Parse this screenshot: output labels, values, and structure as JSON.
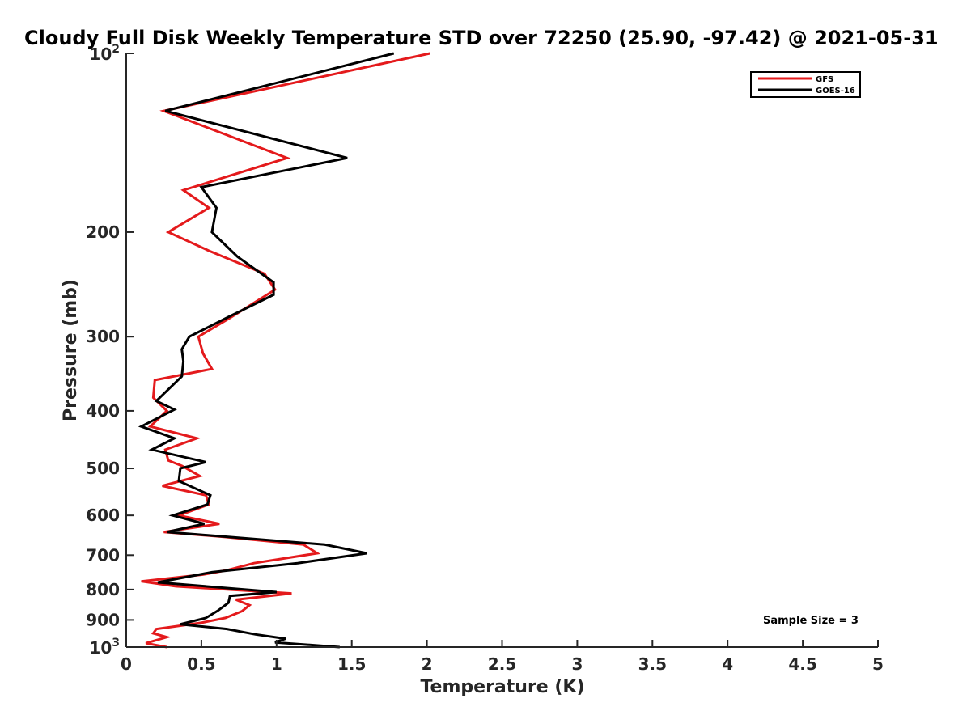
{
  "chart_data": {
    "type": "line",
    "title": "Cloudy Full Disk Weekly Temperature STD over 72250 (25.90, -97.42) @ 2021-05-31",
    "xlabel": "Temperature (K)",
    "ylabel": "Pressure (mb)",
    "xlim": [
      0,
      5
    ],
    "ylim": [
      100,
      1000
    ],
    "yscale": "log",
    "y_reversed": true,
    "x_ticks": [
      "0",
      "0.5",
      "1",
      "1.5",
      "2",
      "2.5",
      "3",
      "3.5",
      "4",
      "4.5",
      "5"
    ],
    "y_ticks": [
      {
        "value": 100,
        "base": "10",
        "exp": "2"
      },
      {
        "value": 200,
        "label": "200"
      },
      {
        "value": 300,
        "label": "300"
      },
      {
        "value": 400,
        "label": "400"
      },
      {
        "value": 500,
        "label": "500"
      },
      {
        "value": 600,
        "label": "600"
      },
      {
        "value": 700,
        "label": "700"
      },
      {
        "value": 800,
        "label": "800"
      },
      {
        "value": 900,
        "label": "900"
      },
      {
        "value": 1000,
        "base": "10",
        "exp": "3"
      }
    ],
    "legend_position": "top-right",
    "annotation": "Sample Size = 3",
    "series": [
      {
        "name": "GFS",
        "color": "#e41a1c",
        "points": [
          [
            2.02,
            100
          ],
          [
            0.25,
            125
          ],
          [
            1.07,
            150
          ],
          [
            0.38,
            170
          ],
          [
            0.55,
            182
          ],
          [
            0.28,
            200
          ],
          [
            0.55,
            215
          ],
          [
            0.92,
            235
          ],
          [
            0.99,
            250
          ],
          [
            0.68,
            280
          ],
          [
            0.48,
            300
          ],
          [
            0.51,
            320
          ],
          [
            0.57,
            340
          ],
          [
            0.19,
            355
          ],
          [
            0.18,
            380
          ],
          [
            0.27,
            400
          ],
          [
            0.16,
            425
          ],
          [
            0.47,
            445
          ],
          [
            0.26,
            465
          ],
          [
            0.28,
            485
          ],
          [
            0.37,
            495
          ],
          [
            0.49,
            515
          ],
          [
            0.24,
            535
          ],
          [
            0.53,
            555
          ],
          [
            0.55,
            575
          ],
          [
            0.35,
            600
          ],
          [
            0.62,
            620
          ],
          [
            0.25,
            640
          ],
          [
            0.65,
            652
          ],
          [
            1.18,
            672
          ],
          [
            1.27,
            695
          ],
          [
            0.85,
            722
          ],
          [
            0.67,
            742
          ],
          [
            0.51,
            755
          ],
          [
            0.1,
            775
          ],
          [
            0.33,
            790
          ],
          [
            1.1,
            812
          ],
          [
            0.73,
            832
          ],
          [
            0.82,
            850
          ],
          [
            0.77,
            870
          ],
          [
            0.66,
            893
          ],
          [
            0.5,
            910
          ],
          [
            0.2,
            932
          ],
          [
            0.18,
            948
          ],
          [
            0.27,
            962
          ],
          [
            0.13,
            985
          ],
          [
            0.27,
            1000
          ]
        ]
      },
      {
        "name": "GOES-16",
        "color": "#000000",
        "points": [
          [
            1.78,
            100
          ],
          [
            0.26,
            125
          ],
          [
            1.47,
            150
          ],
          [
            0.5,
            168
          ],
          [
            0.6,
            182
          ],
          [
            0.57,
            200
          ],
          [
            0.74,
            220
          ],
          [
            0.98,
            243
          ],
          [
            0.98,
            255
          ],
          [
            0.68,
            278
          ],
          [
            0.42,
            300
          ],
          [
            0.37,
            315
          ],
          [
            0.38,
            330
          ],
          [
            0.37,
            350
          ],
          [
            0.2,
            385
          ],
          [
            0.32,
            398
          ],
          [
            0.1,
            425
          ],
          [
            0.32,
            445
          ],
          [
            0.17,
            465
          ],
          [
            0.53,
            488
          ],
          [
            0.36,
            500
          ],
          [
            0.35,
            525
          ],
          [
            0.56,
            555
          ],
          [
            0.54,
            575
          ],
          [
            0.31,
            600
          ],
          [
            0.52,
            620
          ],
          [
            0.27,
            640
          ],
          [
            1.32,
            672
          ],
          [
            1.6,
            695
          ],
          [
            1.14,
            722
          ],
          [
            0.57,
            748
          ],
          [
            0.21,
            778
          ],
          [
            1.0,
            808
          ],
          [
            0.69,
            820
          ],
          [
            0.68,
            842
          ],
          [
            0.61,
            868
          ],
          [
            0.53,
            893
          ],
          [
            0.36,
            915
          ],
          [
            0.67,
            932
          ],
          [
            0.86,
            952
          ],
          [
            1.06,
            968
          ],
          [
            0.99,
            982
          ],
          [
            1.42,
            1000
          ]
        ]
      }
    ]
  }
}
